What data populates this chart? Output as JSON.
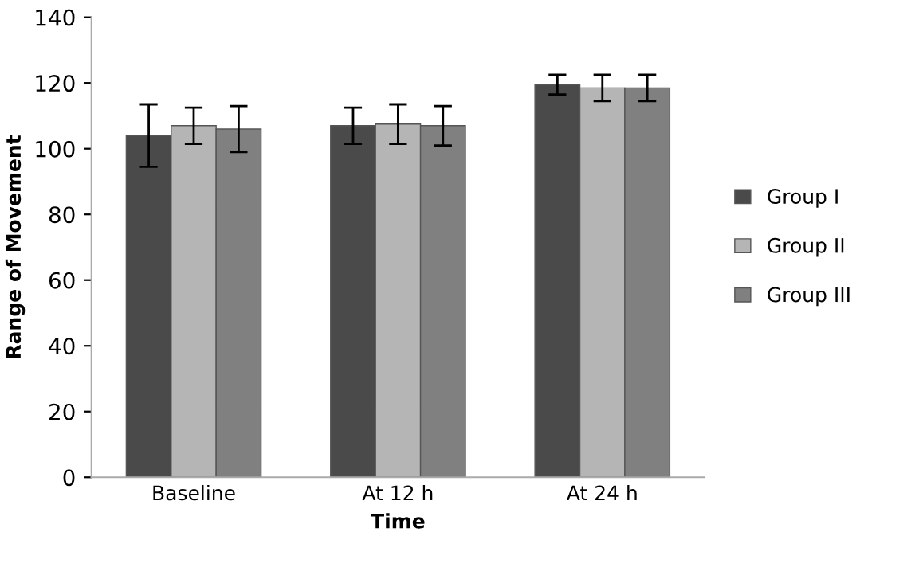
{
  "chart_data": {
    "type": "bar",
    "xlabel": "Time",
    "ylabel": "Range of Movement",
    "categories": [
      "Baseline",
      "At 12 h",
      "At 24 h"
    ],
    "series": [
      {
        "name": "Group I",
        "color": "#4a4a4a",
        "values": [
          104,
          107,
          119.5
        ],
        "errors": [
          9.5,
          5.5,
          3
        ]
      },
      {
        "name": "Group II",
        "color": "#b5b5b5",
        "values": [
          107,
          107.5,
          118.5
        ],
        "errors": [
          5.5,
          6,
          4
        ]
      },
      {
        "name": "Group III",
        "color": "#808080",
        "values": [
          106,
          107,
          118.5
        ],
        "errors": [
          7,
          6,
          4
        ]
      }
    ],
    "ylim": [
      0,
      140
    ],
    "yticks": [
      0,
      20,
      40,
      60,
      80,
      100,
      120,
      140
    ],
    "grid": false,
    "legend": "right"
  }
}
